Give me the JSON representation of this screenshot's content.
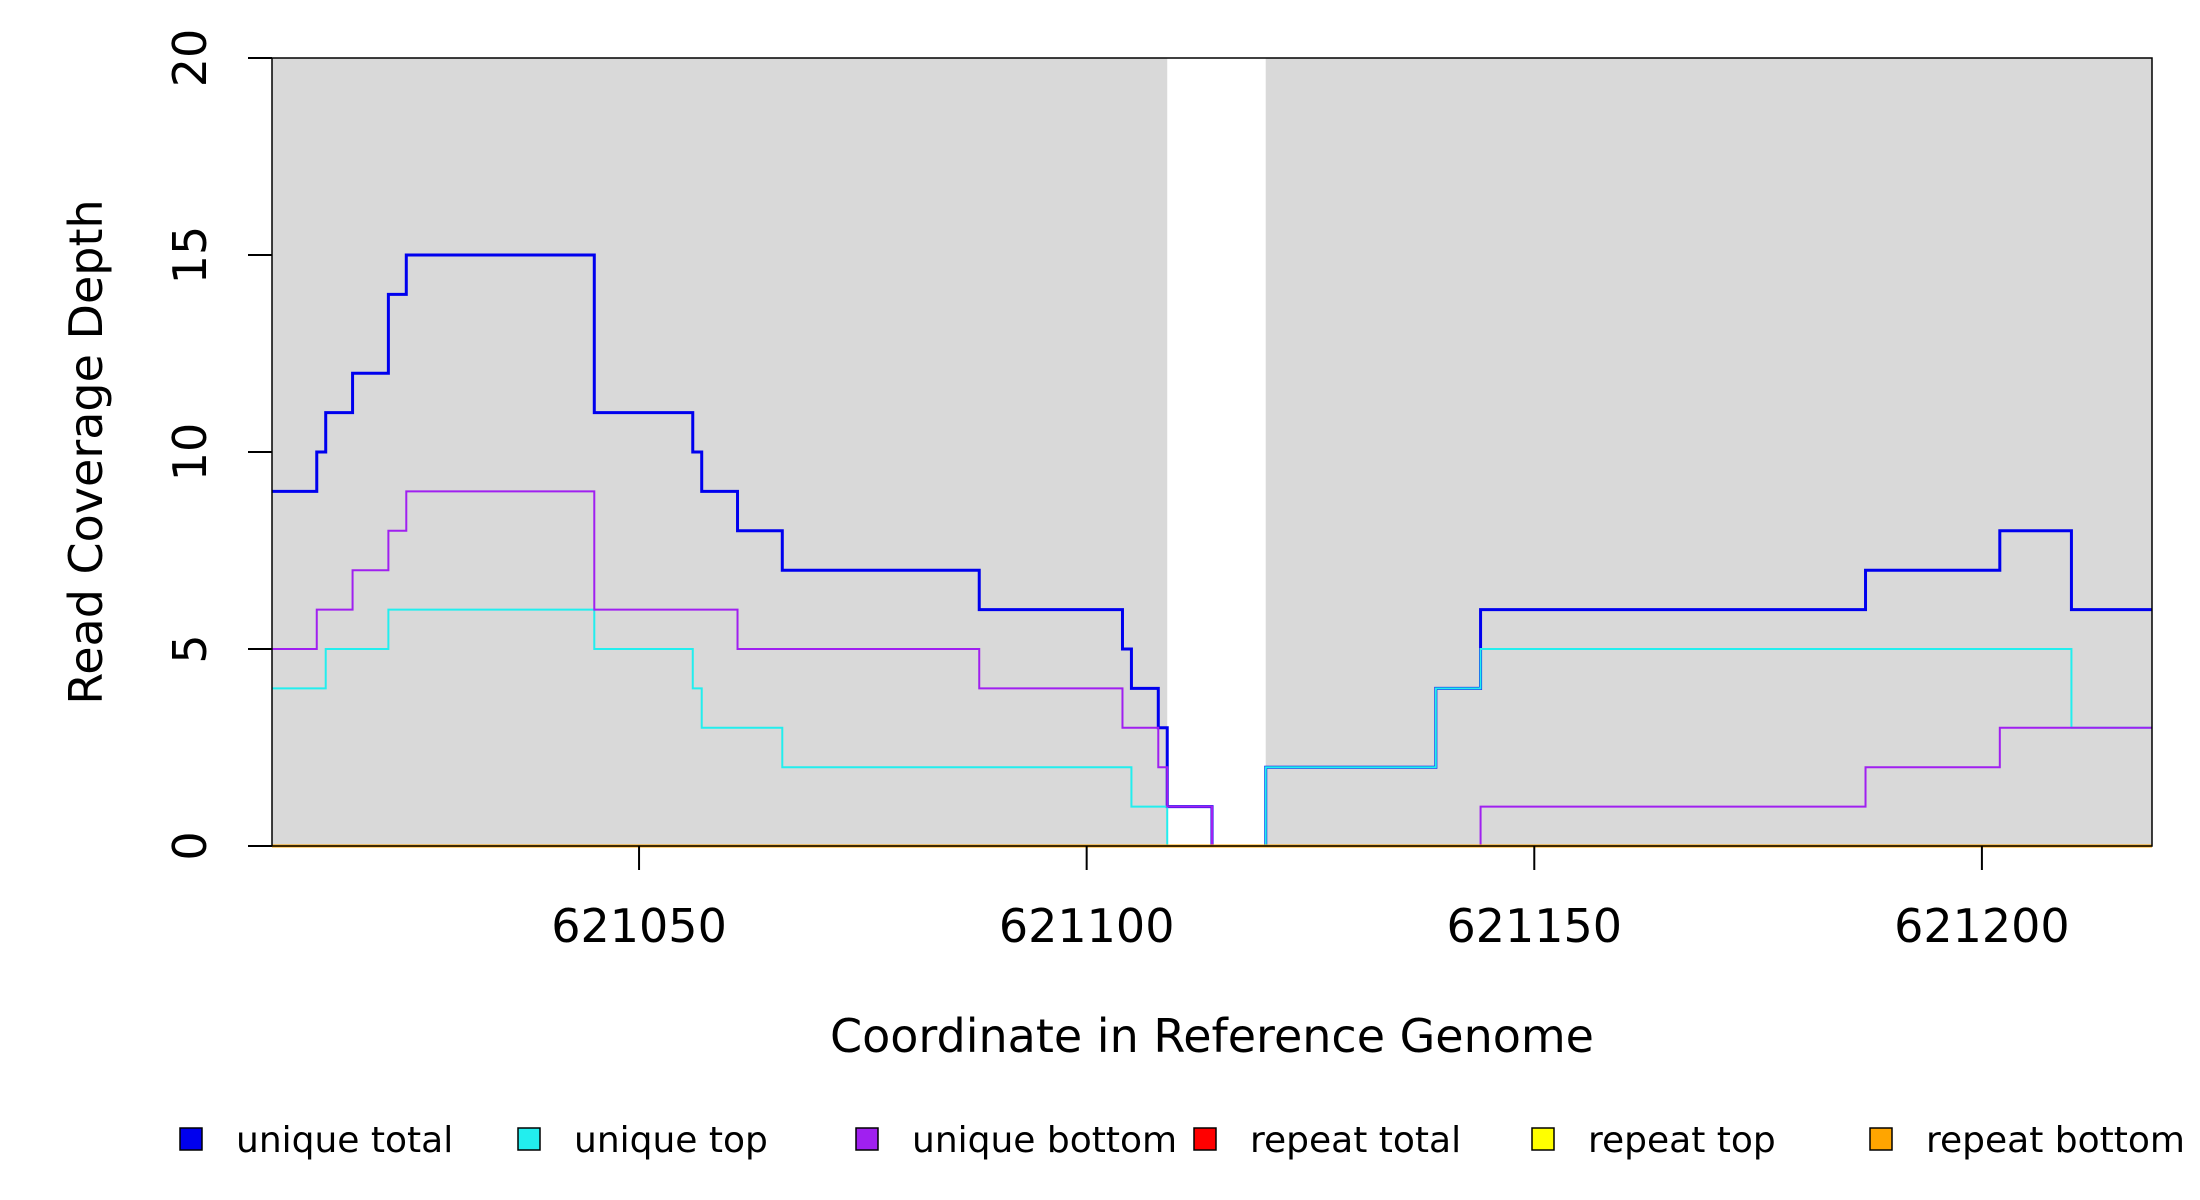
{
  "chart_data": {
    "type": "line",
    "title": "",
    "xlabel": "Coordinate in Reference Genome",
    "ylabel": "Read Coverage Depth",
    "xlim": [
      621009,
      621219
    ],
    "ylim": [
      0,
      20
    ],
    "xticks": [
      621050,
      621100,
      621150,
      621200
    ],
    "yticks": [
      0,
      5,
      10,
      15,
      20
    ],
    "grid": false,
    "legend_position": "bottom",
    "background_color": "#d9d9d9",
    "highlight_regions": [
      {
        "x": [
          621109,
          621120
        ],
        "color": "#ffffff"
      }
    ],
    "series": [
      {
        "name": "unique total",
        "color": "#0000ee",
        "width": 3,
        "points": [
          [
            621009,
            9
          ],
          [
            621014,
            10
          ],
          [
            621015,
            11
          ],
          [
            621018,
            12
          ],
          [
            621022,
            14
          ],
          [
            621024,
            15
          ],
          [
            621045,
            11
          ],
          [
            621056,
            10
          ],
          [
            621057,
            9
          ],
          [
            621061,
            8
          ],
          [
            621066,
            7
          ],
          [
            621088,
            6
          ],
          [
            621104,
            5
          ],
          [
            621105,
            4
          ],
          [
            621108,
            3
          ],
          [
            621109,
            1
          ],
          [
            621114,
            0
          ],
          [
            621120,
            2
          ],
          [
            621139,
            4
          ],
          [
            621144,
            6
          ],
          [
            621187,
            7
          ],
          [
            621202,
            8
          ],
          [
            621210,
            6
          ],
          [
            621219,
            6
          ]
        ]
      },
      {
        "name": "unique top",
        "color": "#22eeee",
        "width": 2,
        "points": [
          [
            621009,
            4
          ],
          [
            621015,
            5
          ],
          [
            621022,
            6
          ],
          [
            621045,
            5
          ],
          [
            621056,
            4
          ],
          [
            621057,
            3
          ],
          [
            621066,
            2
          ],
          [
            621105,
            1
          ],
          [
            621109,
            0
          ],
          [
            621120,
            2
          ],
          [
            621139,
            4
          ],
          [
            621144,
            5
          ],
          [
            621210,
            3
          ],
          [
            621219,
            3
          ]
        ]
      },
      {
        "name": "unique bottom",
        "color": "#a020f0",
        "width": 2,
        "points": [
          [
            621009,
            5
          ],
          [
            621014,
            6
          ],
          [
            621018,
            7
          ],
          [
            621022,
            8
          ],
          [
            621024,
            9
          ],
          [
            621045,
            6
          ],
          [
            621061,
            5
          ],
          [
            621088,
            4
          ],
          [
            621104,
            3
          ],
          [
            621108,
            2
          ],
          [
            621109,
            1
          ],
          [
            621114,
            0
          ],
          [
            621144,
            1
          ],
          [
            621187,
            2
          ],
          [
            621202,
            3
          ],
          [
            621219,
            3
          ]
        ]
      },
      {
        "name": "repeat total",
        "color": "#ff0000",
        "width": 2,
        "points": [
          [
            621009,
            0
          ],
          [
            621219,
            0
          ]
        ]
      },
      {
        "name": "repeat top",
        "color": "#ffff00",
        "width": 2,
        "points": [
          [
            621009,
            0
          ],
          [
            621219,
            0
          ]
        ]
      },
      {
        "name": "repeat bottom",
        "color": "#ffa500",
        "width": 3,
        "points": [
          [
            621009,
            0
          ],
          [
            621219,
            0
          ]
        ]
      }
    ]
  }
}
